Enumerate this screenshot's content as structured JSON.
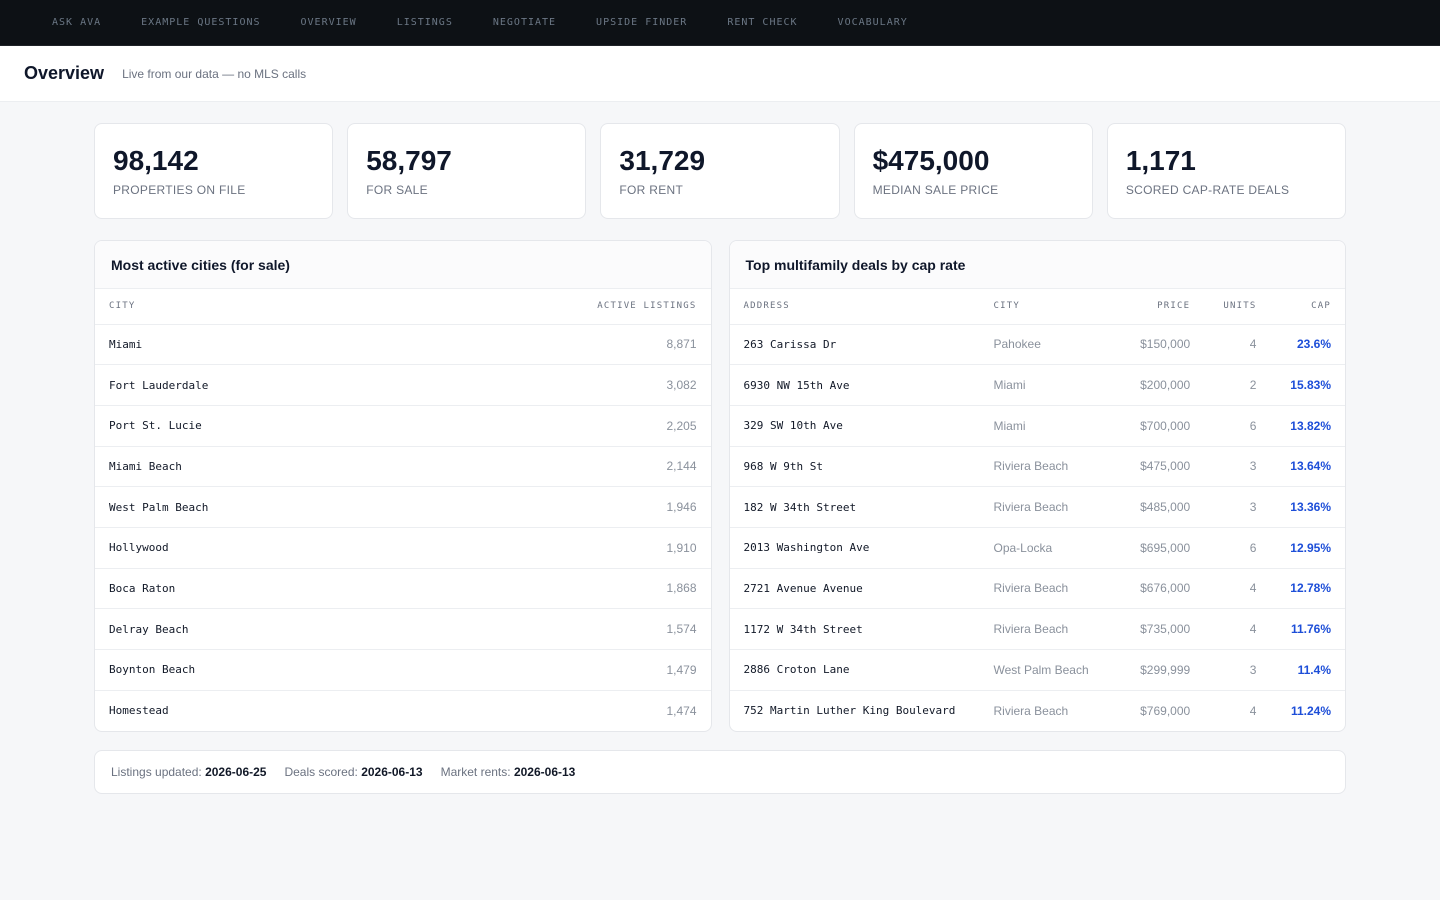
{
  "nav": [
    "ASK AVA",
    "EXAMPLE QUESTIONS",
    "OVERVIEW",
    "LISTINGS",
    "NEGOTIATE",
    "UPSIDE FINDER",
    "RENT CHECK",
    "VOCABULARY"
  ],
  "header": {
    "title": "Overview",
    "subtitle": "Live from our data — no MLS calls"
  },
  "stats": [
    {
      "value": "98,142",
      "label": "PROPERTIES ON FILE"
    },
    {
      "value": "58,797",
      "label": "FOR SALE"
    },
    {
      "value": "31,729",
      "label": "FOR RENT"
    },
    {
      "value": "$475,000",
      "label": "MEDIAN SALE PRICE"
    },
    {
      "value": "1,171",
      "label": "SCORED CAP-RATE DEALS"
    }
  ],
  "cities": {
    "title": "Most active cities (for sale)",
    "columns": [
      "CITY",
      "ACTIVE LISTINGS"
    ],
    "rows": [
      [
        "Miami",
        "8,871"
      ],
      [
        "Fort Lauderdale",
        "3,082"
      ],
      [
        "Port St. Lucie",
        "2,205"
      ],
      [
        "Miami Beach",
        "2,144"
      ],
      [
        "West Palm Beach",
        "1,946"
      ],
      [
        "Hollywood",
        "1,910"
      ],
      [
        "Boca Raton",
        "1,868"
      ],
      [
        "Delray Beach",
        "1,574"
      ],
      [
        "Boynton Beach",
        "1,479"
      ],
      [
        "Homestead",
        "1,474"
      ]
    ]
  },
  "deals": {
    "title": "Top multifamily deals by cap rate",
    "columns": [
      "ADDRESS",
      "CITY",
      "PRICE",
      "UNITS",
      "CAP"
    ],
    "rows": [
      [
        "263 Carissa Dr",
        "Pahokee",
        "$150,000",
        "4",
        "23.6%"
      ],
      [
        "6930 NW 15th Ave",
        "Miami",
        "$200,000",
        "2",
        "15.83%"
      ],
      [
        "329 SW 10th Ave",
        "Miami",
        "$700,000",
        "6",
        "13.82%"
      ],
      [
        "968 W 9th St",
        "Riviera Beach",
        "$475,000",
        "3",
        "13.64%"
      ],
      [
        "182 W 34th Street",
        "Riviera Beach",
        "$485,000",
        "3",
        "13.36%"
      ],
      [
        "2013 Washington Ave",
        "Opa-Locka",
        "$695,000",
        "6",
        "12.95%"
      ],
      [
        "2721 Avenue Avenue",
        "Riviera Beach",
        "$676,000",
        "4",
        "12.78%"
      ],
      [
        "1172 W 34th Street",
        "Riviera Beach",
        "$735,000",
        "4",
        "11.76%"
      ],
      [
        "2886 Croton Lane",
        "West Palm Beach",
        "$299,999",
        "3",
        "11.4%"
      ],
      [
        "752 Martin Luther King Boulevard",
        "Riviera Beach",
        "$769,000",
        "4",
        "11.24%"
      ]
    ]
  },
  "footer": [
    {
      "label": "Listings updated:",
      "value": "2026-06-25"
    },
    {
      "label": "Deals scored:",
      "value": "2026-06-13"
    },
    {
      "label": "Market rents:",
      "value": "2026-06-13"
    }
  ],
  "colors": {
    "nav_bg": "#0d1115",
    "accent": "#1d4ed8",
    "page_bg": "#f6f7f9"
  }
}
